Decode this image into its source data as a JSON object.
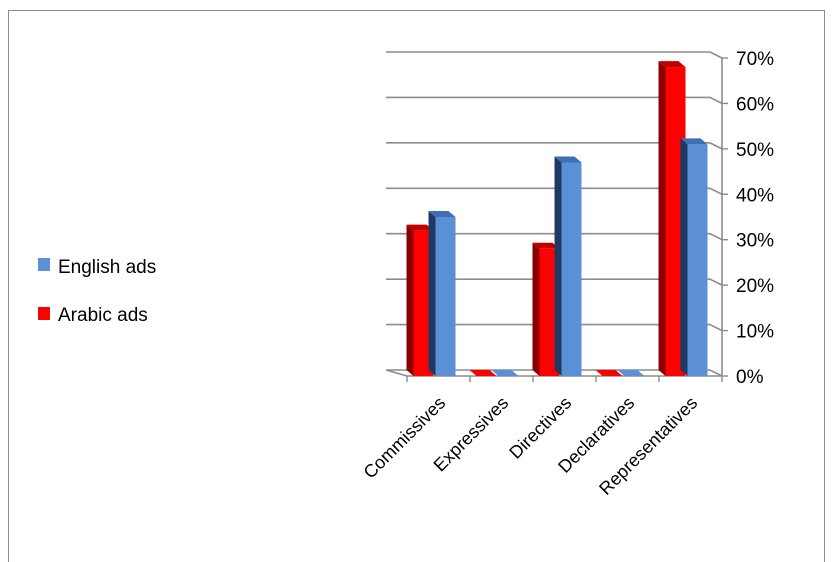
{
  "chart_data": {
    "type": "bar",
    "categories": [
      "Commissives",
      "Expressives",
      "Directives",
      "Declaratives",
      "Representatives"
    ],
    "series": [
      {
        "name": "Arabic ads",
        "values": [
          32,
          0,
          28,
          0,
          68
        ],
        "color": "#ff0000"
      },
      {
        "name": "English ads",
        "values": [
          35,
          0,
          47,
          0,
          51
        ],
        "color": "#5b8fd6"
      }
    ],
    "ylim": [
      0,
      70
    ],
    "yticks": [
      "0%",
      "10%",
      "20%",
      "30%",
      "40%",
      "50%",
      "60%",
      "70%"
    ],
    "title": "",
    "xlabel": "",
    "ylabel": "",
    "legend": [
      {
        "name": "English ads",
        "color": "#5b8fd6"
      },
      {
        "name": "Arabic ads",
        "color": "#ff0000"
      }
    ],
    "legend_position": "left",
    "grid": true,
    "style": "3d-clustered"
  }
}
